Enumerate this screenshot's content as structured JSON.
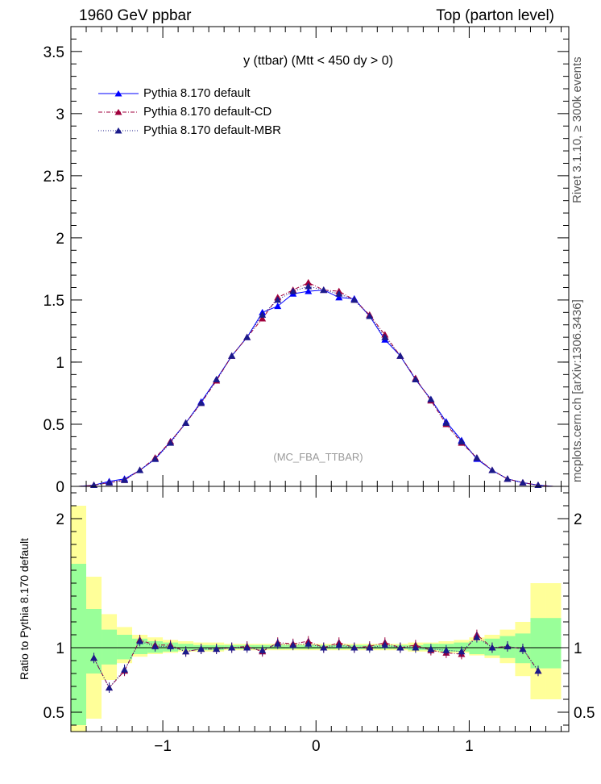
{
  "header": {
    "left": "1960 GeV ppbar",
    "right": "Top (parton level)"
  },
  "side": {
    "rivet": "Rivet 3.1.10, ≥ 300k events",
    "mcplots": "mcplots.cern.ch [arXiv:1306.3436]"
  },
  "colors": {
    "default": "#0000ff",
    "cd": "#a0003c",
    "mbr": "#1a1a8a",
    "band_yellow": "#ffff99",
    "band_green": "#99ff99"
  },
  "chart_data": [
    {
      "type": "line",
      "title": "y (ttbar) (Mtt < 450 dy > 0)",
      "watermark": "(MC_FBA_TTBAR)",
      "xlim": [
        -1.6,
        1.65
      ],
      "ylim": [
        0,
        3.7
      ],
      "yticks": [
        0,
        0.5,
        1,
        1.5,
        2,
        2.5,
        3,
        3.5
      ],
      "ytick_labels": [
        "0",
        "0.5",
        "1",
        "1.5",
        "2",
        "2.5",
        "3",
        "3.5"
      ],
      "legend_position": "top-left",
      "x": [
        -1.55,
        -1.45,
        -1.35,
        -1.25,
        -1.15,
        -1.05,
        -0.95,
        -0.85,
        -0.75,
        -0.65,
        -0.55,
        -0.45,
        -0.35,
        -0.25,
        -0.15,
        -0.05,
        0.05,
        0.15,
        0.25,
        0.35,
        0.45,
        0.55,
        0.65,
        0.75,
        0.85,
        0.95,
        1.05,
        1.15,
        1.25,
        1.35,
        1.45,
        1.55
      ],
      "series": [
        {
          "name": "Pythia 8.170 default",
          "values": [
            0.0,
            0.01,
            0.04,
            0.06,
            0.13,
            0.22,
            0.36,
            0.51,
            0.68,
            0.86,
            1.05,
            1.2,
            1.4,
            1.45,
            1.55,
            1.57,
            1.58,
            1.52,
            1.51,
            1.37,
            1.18,
            1.05,
            0.86,
            0.7,
            0.52,
            0.37,
            0.22,
            0.13,
            0.06,
            0.03,
            0.01,
            0.0
          ]
        },
        {
          "name": "Pythia 8.170 default-CD",
          "values": [
            0.0,
            0.01,
            0.03,
            0.05,
            0.13,
            0.23,
            0.36,
            0.51,
            0.67,
            0.85,
            1.05,
            1.2,
            1.35,
            1.52,
            1.58,
            1.64,
            1.58,
            1.57,
            1.5,
            1.38,
            1.22,
            1.05,
            0.87,
            0.69,
            0.5,
            0.35,
            0.23,
            0.13,
            0.06,
            0.03,
            0.01,
            0.0
          ]
        },
        {
          "name": "Pythia 8.170 default-MBR",
          "values": [
            0.0,
            0.01,
            0.03,
            0.05,
            0.13,
            0.22,
            0.35,
            0.51,
            0.67,
            0.86,
            1.05,
            1.2,
            1.38,
            1.5,
            1.57,
            1.61,
            1.58,
            1.55,
            1.5,
            1.37,
            1.2,
            1.05,
            0.86,
            0.7,
            0.51,
            0.36,
            0.23,
            0.13,
            0.06,
            0.03,
            0.01,
            0.0
          ]
        }
      ]
    },
    {
      "type": "line",
      "ylabel": "Ratio to Pythia 8.170 default",
      "xlim": [
        -1.6,
        1.65
      ],
      "ylim": [
        0.35,
        2.25
      ],
      "xticks": [
        -1,
        0,
        1
      ],
      "xtick_labels": [
        "−1",
        "0",
        "1"
      ],
      "yticks": [
        0.5,
        1,
        2
      ],
      "ytick_labels": [
        "0.5",
        "1",
        "2"
      ],
      "x": [
        -1.55,
        -1.45,
        -1.35,
        -1.25,
        -1.15,
        -1.05,
        -0.95,
        -0.85,
        -0.75,
        -0.65,
        -0.55,
        -0.45,
        -0.35,
        -0.25,
        -0.15,
        -0.05,
        0.05,
        0.15,
        0.25,
        0.35,
        0.45,
        0.55,
        0.65,
        0.75,
        0.85,
        0.95,
        1.05,
        1.15,
        1.25,
        1.35,
        1.45,
        1.55
      ],
      "band_yellow": [
        [
          0.35,
          2.1
        ],
        [
          0.45,
          1.55
        ],
        [
          0.75,
          1.26
        ],
        [
          0.88,
          1.16
        ],
        [
          0.93,
          1.1
        ],
        [
          0.95,
          1.08
        ],
        [
          0.96,
          1.06
        ],
        [
          0.97,
          1.05
        ],
        [
          0.97,
          1.04
        ],
        [
          0.97,
          1.04
        ],
        [
          0.98,
          1.03
        ],
        [
          0.98,
          1.03
        ],
        [
          0.98,
          1.03
        ],
        [
          0.98,
          1.03
        ],
        [
          0.98,
          1.03
        ],
        [
          0.98,
          1.03
        ],
        [
          0.98,
          1.03
        ],
        [
          0.98,
          1.03
        ],
        [
          0.98,
          1.03
        ],
        [
          0.98,
          1.03
        ],
        [
          0.98,
          1.03
        ],
        [
          0.98,
          1.03
        ],
        [
          0.97,
          1.04
        ],
        [
          0.97,
          1.04
        ],
        [
          0.96,
          1.05
        ],
        [
          0.96,
          1.06
        ],
        [
          0.94,
          1.08
        ],
        [
          0.92,
          1.1
        ],
        [
          0.88,
          1.14
        ],
        [
          0.78,
          1.2
        ],
        [
          0.6,
          1.5
        ],
        [
          0.6,
          1.5
        ]
      ],
      "band_green": [
        [
          0.4,
          1.65
        ],
        [
          0.8,
          1.3
        ],
        [
          0.87,
          1.14
        ],
        [
          0.91,
          1.1
        ],
        [
          0.95,
          1.07
        ],
        [
          0.96,
          1.05
        ],
        [
          0.97,
          1.04
        ],
        [
          0.98,
          1.03
        ],
        [
          0.98,
          1.02
        ],
        [
          0.98,
          1.02
        ],
        [
          0.99,
          1.02
        ],
        [
          0.99,
          1.02
        ],
        [
          0.99,
          1.02
        ],
        [
          0.99,
          1.02
        ],
        [
          0.99,
          1.02
        ],
        [
          0.99,
          1.02
        ],
        [
          0.99,
          1.02
        ],
        [
          0.99,
          1.02
        ],
        [
          0.99,
          1.02
        ],
        [
          0.99,
          1.02
        ],
        [
          0.99,
          1.02
        ],
        [
          0.99,
          1.02
        ],
        [
          0.98,
          1.02
        ],
        [
          0.98,
          1.03
        ],
        [
          0.97,
          1.03
        ],
        [
          0.97,
          1.04
        ],
        [
          0.95,
          1.05
        ],
        [
          0.94,
          1.07
        ],
        [
          0.92,
          1.09
        ],
        [
          0.88,
          1.11
        ],
        [
          0.84,
          1.23
        ],
        [
          0.84,
          1.23
        ]
      ],
      "series": [
        {
          "name": "Pythia 8.170 default-CD",
          "values": [
            null,
            0.92,
            0.69,
            0.82,
            1.06,
            1.02,
            1.02,
            0.97,
            0.99,
            0.99,
            1.0,
            1.01,
            0.97,
            1.04,
            1.03,
            1.05,
            1.0,
            1.04,
            1.0,
            1.01,
            1.04,
            1.0,
            1.02,
            0.98,
            0.96,
            0.95,
            1.1,
            1.0,
            1.01,
            0.99,
            0.82,
            null
          ]
        },
        {
          "name": "Pythia 8.170 default-MBR",
          "values": [
            null,
            0.92,
            0.69,
            0.83,
            1.05,
            1.01,
            1.01,
            0.97,
            0.99,
            0.99,
            1.0,
            1.0,
            0.98,
            1.03,
            1.02,
            1.03,
            1.0,
            1.02,
            1.0,
            1.0,
            1.02,
            1.0,
            1.0,
            0.99,
            0.98,
            0.97,
            1.08,
            1.0,
            1.01,
            0.99,
            0.82,
            null
          ]
        }
      ]
    }
  ]
}
